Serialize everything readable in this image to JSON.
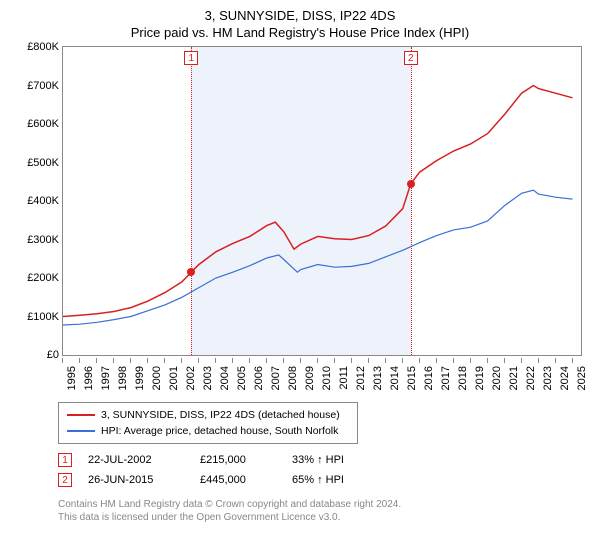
{
  "title_line1": "3, SUNNYSIDE, DISS, IP22 4DS",
  "title_line2": "Price paid vs. HM Land Registry's House Price Index (HPI)",
  "chart": {
    "type": "line",
    "background_color": "#ffffff",
    "border_color": "#888888",
    "shaded_band_color": "#eef3fb",
    "shaded_band_xstart": 2002.55,
    "shaded_band_xend": 2015.48,
    "xlim": [
      1995,
      2025.5
    ],
    "ylim": [
      0,
      800000
    ],
    "ytick_step": 100000,
    "ytick_labels": [
      "£0",
      "£100K",
      "£200K",
      "£300K",
      "£400K",
      "£500K",
      "£600K",
      "£700K",
      "£800K"
    ],
    "xtick_years": [
      1995,
      1996,
      1997,
      1998,
      1999,
      2000,
      2001,
      2002,
      2003,
      2004,
      2005,
      2006,
      2007,
      2008,
      2009,
      2010,
      2011,
      2012,
      2013,
      2014,
      2015,
      2016,
      2017,
      2018,
      2019,
      2020,
      2021,
      2022,
      2023,
      2024,
      2025
    ],
    "grid_color": "#cccccc",
    "label_fontsize": 11,
    "title_fontsize": 13,
    "series": [
      {
        "name": "3, SUNNYSIDE, DISS, IP22 4DS (detached house)",
        "color": "#d92020",
        "line_width": 1.5,
        "points": [
          [
            1995,
            100000
          ],
          [
            1996,
            103000
          ],
          [
            1997,
            107000
          ],
          [
            1998,
            113000
          ],
          [
            1999,
            123000
          ],
          [
            2000,
            140000
          ],
          [
            2001,
            162000
          ],
          [
            2002,
            190000
          ],
          [
            2002.55,
            215000
          ],
          [
            2003,
            235000
          ],
          [
            2004,
            268000
          ],
          [
            2005,
            290000
          ],
          [
            2006,
            308000
          ],
          [
            2007,
            336000
          ],
          [
            2007.5,
            345000
          ],
          [
            2008,
            320000
          ],
          [
            2008.6,
            275000
          ],
          [
            2009,
            288000
          ],
          [
            2010,
            308000
          ],
          [
            2011,
            302000
          ],
          [
            2012,
            300000
          ],
          [
            2013,
            310000
          ],
          [
            2014,
            335000
          ],
          [
            2015,
            380000
          ],
          [
            2015.48,
            445000
          ],
          [
            2016,
            475000
          ],
          [
            2017,
            505000
          ],
          [
            2018,
            530000
          ],
          [
            2019,
            548000
          ],
          [
            2020,
            575000
          ],
          [
            2021,
            625000
          ],
          [
            2022,
            680000
          ],
          [
            2022.7,
            700000
          ],
          [
            2023,
            692000
          ],
          [
            2024,
            680000
          ],
          [
            2025,
            668000
          ]
        ]
      },
      {
        "name": "HPI: Average price, detached house, South Norfolk",
        "color": "#3a6fd8",
        "line_width": 1.2,
        "points": [
          [
            1995,
            78000
          ],
          [
            1996,
            80000
          ],
          [
            1997,
            85000
          ],
          [
            1998,
            92000
          ],
          [
            1999,
            100000
          ],
          [
            2000,
            115000
          ],
          [
            2001,
            130000
          ],
          [
            2002,
            150000
          ],
          [
            2003,
            175000
          ],
          [
            2004,
            200000
          ],
          [
            2005,
            215000
          ],
          [
            2006,
            232000
          ],
          [
            2007,
            252000
          ],
          [
            2007.7,
            260000
          ],
          [
            2008,
            248000
          ],
          [
            2008.8,
            215000
          ],
          [
            2009,
            222000
          ],
          [
            2010,
            235000
          ],
          [
            2011,
            228000
          ],
          [
            2012,
            230000
          ],
          [
            2013,
            238000
          ],
          [
            2014,
            255000
          ],
          [
            2015,
            272000
          ],
          [
            2016,
            292000
          ],
          [
            2017,
            310000
          ],
          [
            2018,
            325000
          ],
          [
            2019,
            332000
          ],
          [
            2020,
            348000
          ],
          [
            2021,
            388000
          ],
          [
            2022,
            420000
          ],
          [
            2022.7,
            428000
          ],
          [
            2023,
            418000
          ],
          [
            2024,
            410000
          ],
          [
            2025,
            405000
          ]
        ]
      }
    ],
    "sale_markers": [
      {
        "index": "1",
        "x": 2002.55,
        "y": 215000,
        "dot_color": "#d92020",
        "line_color": "#d92020"
      },
      {
        "index": "2",
        "x": 2015.48,
        "y": 445000,
        "dot_color": "#d92020",
        "line_color": "#d92020"
      }
    ]
  },
  "legend": {
    "border_color": "#888888",
    "items": [
      {
        "label": "3, SUNNYSIDE, DISS, IP22 4DS (detached house)",
        "color": "#d92020"
      },
      {
        "label": "HPI: Average price, detached house, South Norfolk",
        "color": "#3a6fd8"
      }
    ]
  },
  "sales_table": [
    {
      "marker": "1",
      "marker_color": "#d92020",
      "date": "22-JUL-2002",
      "price": "£215,000",
      "pct": "33% ↑ HPI"
    },
    {
      "marker": "2",
      "marker_color": "#d92020",
      "date": "26-JUN-2015",
      "price": "£445,000",
      "pct": "65% ↑ HPI"
    }
  ],
  "footer_line1": "Contains HM Land Registry data © Crown copyright and database right 2024.",
  "footer_line2": "This data is licensed under the Open Government Licence v3.0."
}
